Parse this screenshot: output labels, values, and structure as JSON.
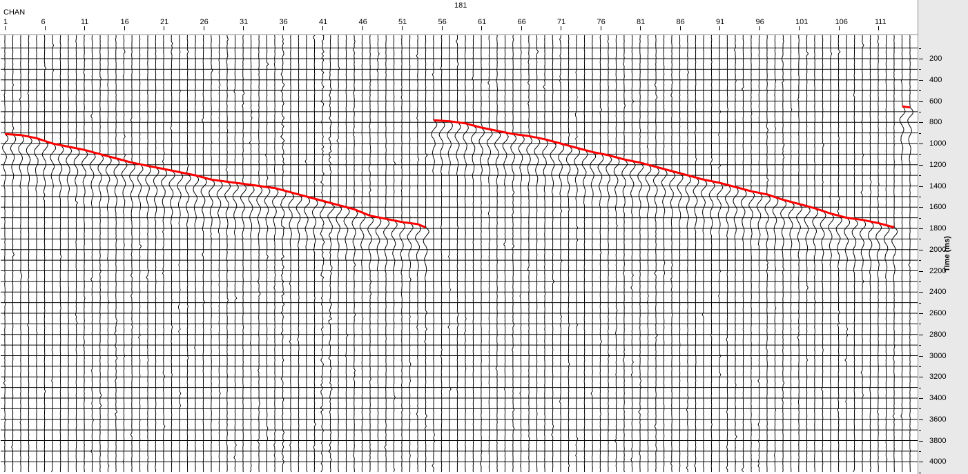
{
  "header": {
    "shot_label": "181",
    "axis_name": "CHAN"
  },
  "time_axis": {
    "title": "Time (ms)"
  },
  "colors": {
    "trace": "#000000",
    "grid": "#000000",
    "pick": "#ff0000",
    "panel": "#e9e9e9"
  },
  "chart_data": {
    "type": "line",
    "title": "",
    "xlabel": "CHAN",
    "ylabel": "Time (ms)",
    "x_ticks": [
      1,
      6,
      11,
      16,
      21,
      26,
      31,
      36,
      41,
      46,
      51,
      56,
      61,
      66,
      71,
      76,
      81,
      86,
      91,
      96,
      101,
      106,
      111
    ],
    "y_ticks": [
      200,
      400,
      600,
      800,
      1000,
      1200,
      1400,
      1600,
      1800,
      2000,
      2200,
      2400,
      2600,
      2800,
      3000,
      3200,
      3400,
      3600,
      3800,
      4000
    ],
    "xlim": [
      1,
      115
    ],
    "ylim": [
      0,
      4100
    ],
    "y_inverted": true,
    "grid": true,
    "series": [
      {
        "x": [
          1,
          3,
          5,
          7,
          9,
          11,
          13,
          15,
          17,
          19,
          21,
          23,
          25,
          27,
          29,
          31,
          33,
          35,
          37,
          39,
          41,
          43,
          45,
          47,
          49,
          51,
          53,
          54
        ],
        "y": [
          910,
          920,
          950,
          1000,
          1030,
          1060,
          1100,
          1140,
          1180,
          1210,
          1240,
          1270,
          1300,
          1340,
          1360,
          1380,
          1400,
          1420,
          1460,
          1500,
          1540,
          1580,
          1620,
          1680,
          1710,
          1740,
          1760,
          1790
        ]
      },
      {
        "x": [
          55,
          57,
          59,
          61,
          63,
          65,
          67,
          69,
          71,
          73,
          75,
          77,
          79,
          81,
          83,
          85,
          87,
          89,
          91,
          93,
          95,
          97,
          99,
          101,
          103,
          105,
          107,
          109,
          111,
          113
        ],
        "y": [
          780,
          790,
          810,
          850,
          880,
          910,
          930,
          960,
          1000,
          1040,
          1080,
          1110,
          1150,
          1180,
          1220,
          1260,
          1300,
          1340,
          1370,
          1410,
          1450,
          1480,
          1530,
          1570,
          1610,
          1660,
          1700,
          1720,
          1750,
          1790
        ]
      },
      {
        "x": [
          114,
          115
        ],
        "y": [
          650,
          660
        ]
      }
    ]
  }
}
